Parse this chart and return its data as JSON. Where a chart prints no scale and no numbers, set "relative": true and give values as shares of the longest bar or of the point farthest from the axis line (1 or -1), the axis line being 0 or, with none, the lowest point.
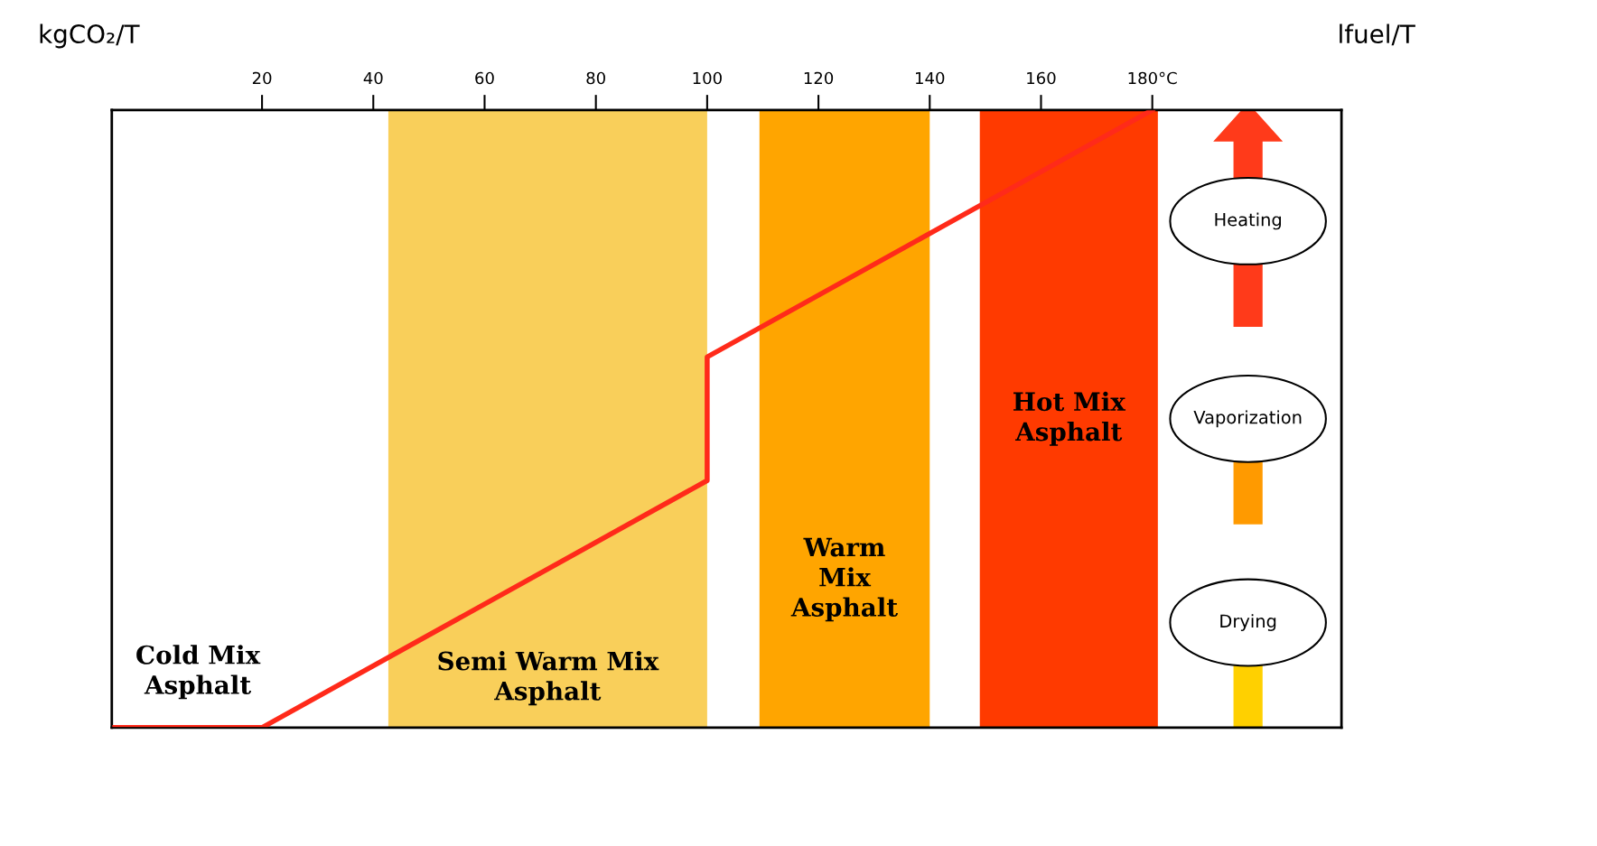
{
  "chart_data": {
    "type": "line",
    "relative": true,
    "ylabel": "kgCO₂/T",
    "y2label": "lfuel/T",
    "x": [
      -7,
      20,
      100,
      100,
      180
    ],
    "xlim": [
      -7,
      214
    ],
    "xticks": [
      20,
      40,
      60,
      80,
      100,
      120,
      140,
      160,
      {
        "value": 180,
        "label": "180°C"
      }
    ],
    "series": [
      {
        "color": "#ff2a1a",
        "values": [
          0,
          0,
          0.4,
          0.6,
          1
        ]
      }
    ],
    "bands": [
      {
        "axis": "x",
        "from": 42.7,
        "to": 100,
        "label": "Semi Warm Mix\nAsphalt",
        "color": "#f9cf5a"
      },
      {
        "axis": "x",
        "from": 109.4,
        "to": 140,
        "label": "Warm\nMix\nAsphalt",
        "color": "#ffa500"
      },
      {
        "axis": "x",
        "from": 149,
        "to": 181,
        "label": "Hot Mix\nAsphalt",
        "color": "#ff3a00"
      }
    ],
    "annotations": [
      "Cold Mix\nAsphalt",
      "Heating",
      "Vaporization",
      "Drying"
    ],
    "grid": false,
    "legend": false,
    "marker": "none",
    "line_style": "solid"
  }
}
